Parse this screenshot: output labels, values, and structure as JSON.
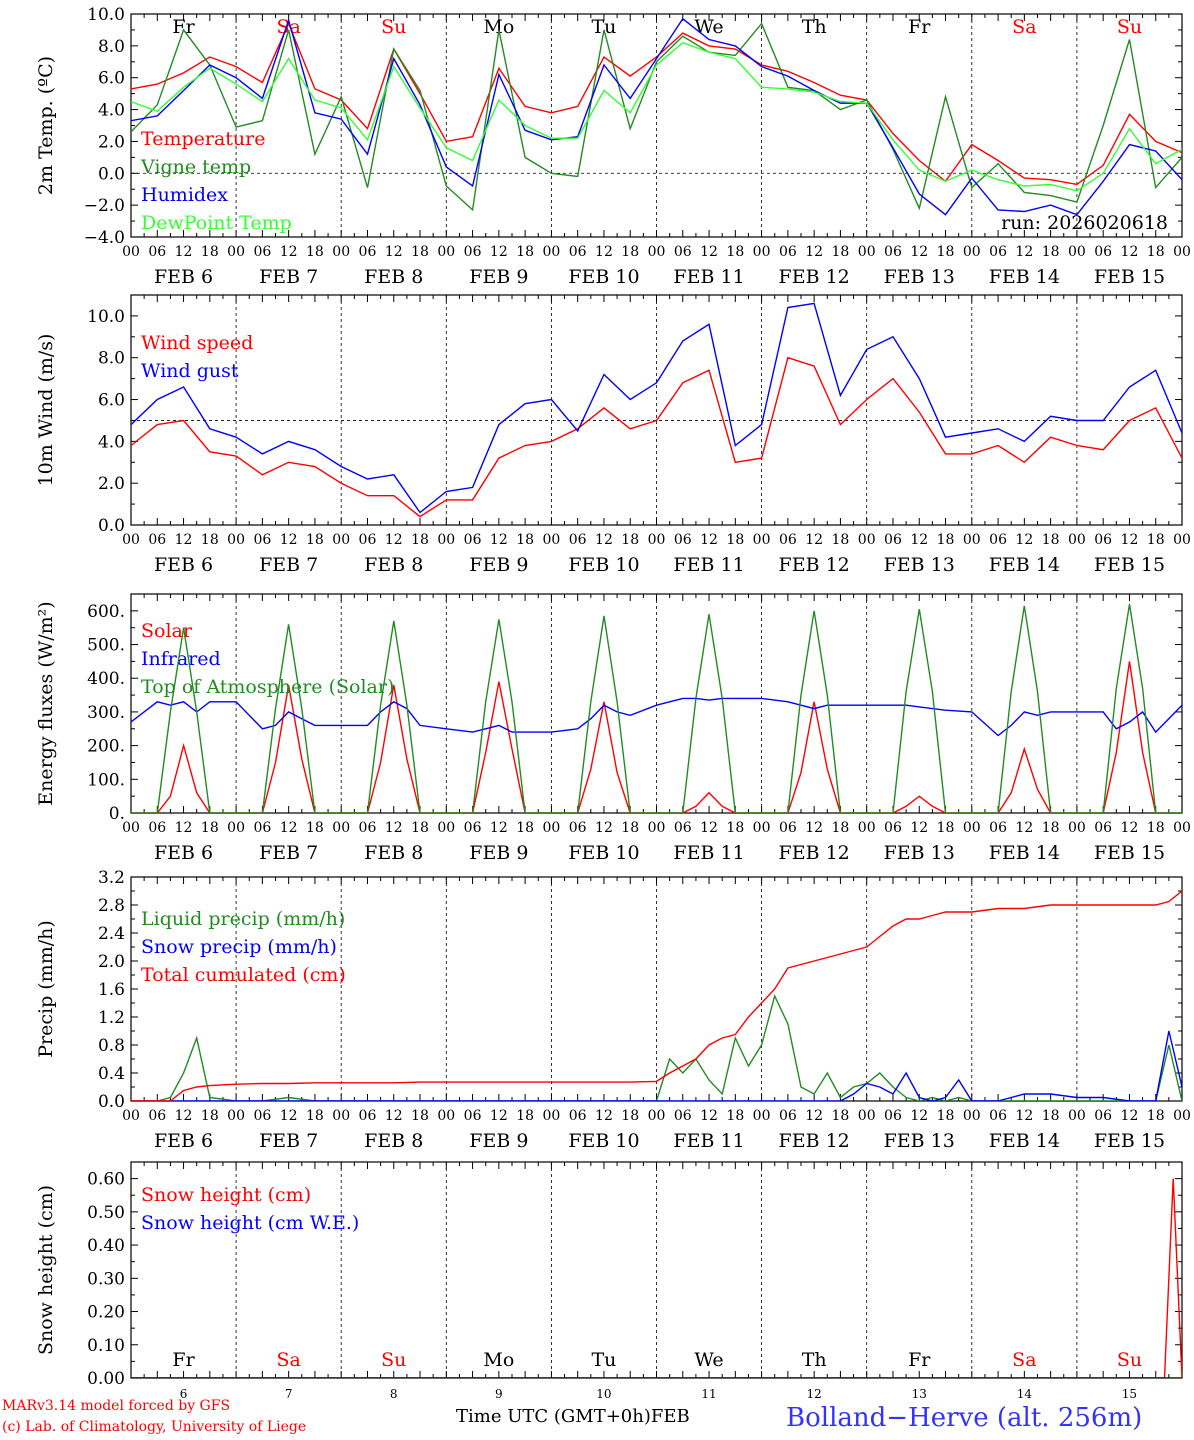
{
  "meta": {
    "model_credit": "MARv3.14 model forced by GFS",
    "lab_credit": "(c) Lab. of Climatology, University of Liege",
    "x_axis_label": "Time UTC (GMT+0h)",
    "x_axis_month": "FEB",
    "station": "Bolland−Herve (alt. 256m)",
    "run": "run: 2026020618"
  },
  "colors": {
    "red": "#ff0000",
    "green": "#228b22",
    "blue": "#0000ff",
    "lightgreen": "#33ff33",
    "weekend": "#ff0000",
    "weekday": "#000000"
  },
  "days": {
    "names": [
      "Fr",
      "Sa",
      "Su",
      "Mo",
      "Tu",
      "We",
      "Th",
      "Fr",
      "Sa",
      "Su"
    ],
    "weekend": [
      false,
      true,
      true,
      false,
      false,
      false,
      false,
      false,
      true,
      true
    ],
    "dates": [
      "FEB  6",
      "FEB  7",
      "FEB  8",
      "FEB  9",
      "FEB 10",
      "FEB 11",
      "FEB 12",
      "FEB 13",
      "FEB 14",
      "FEB 15"
    ],
    "numbers": [
      "6",
      "7",
      "8",
      "9",
      "10",
      "11",
      "12",
      "13",
      "14",
      "15"
    ],
    "hour_ticks": [
      "00",
      "06",
      "12",
      "18"
    ],
    "last_tick": "00"
  },
  "chart_data": [
    {
      "type": "line",
      "id": "temp",
      "ylabel": "2m Temp. (ºC)",
      "ylim": [
        -4,
        10
      ],
      "yticks": [
        "−4.0",
        "−2.0",
        "0.0",
        "2.0",
        "4.0",
        "6.0",
        "8.0",
        "10.0"
      ],
      "ytick_values": [
        -4,
        -2,
        0,
        2,
        4,
        6,
        8,
        10
      ],
      "ref_line": 0,
      "x_hours": [
        0,
        6,
        12,
        18,
        24,
        30,
        36,
        42,
        48,
        54,
        60,
        66,
        72,
        78,
        84,
        90,
        96,
        102,
        108,
        114,
        120,
        126,
        132,
        138,
        144,
        150,
        156,
        162,
        168,
        174,
        180,
        186,
        192,
        198,
        204,
        210,
        216,
        222,
        228,
        234,
        240
      ],
      "series": [
        {
          "name": "Temperature",
          "color": "red",
          "values": [
            5.3,
            5.6,
            6.3,
            7.3,
            6.7,
            5.7,
            9.4,
            5.3,
            4.6,
            2.8,
            7.8,
            5.0,
            2.0,
            2.3,
            6.6,
            4.2,
            3.8,
            4.2,
            7.3,
            6.1,
            7.3,
            8.8,
            8.0,
            7.8,
            6.8,
            6.4,
            5.7,
            4.9,
            4.6,
            2.5,
            0.8,
            -0.5,
            1.8,
            0.8,
            -0.3,
            -0.4,
            -0.7,
            0.5,
            3.7,
            2.0,
            1.3
          ]
        },
        {
          "name": "Vigne temp",
          "color": "green",
          "values": [
            2.6,
            4.3,
            9.0,
            6.8,
            2.9,
            3.3,
            9.0,
            1.2,
            4.8,
            -0.9,
            7.8,
            5.2,
            -0.8,
            -2.3,
            9.0,
            1.0,
            0.0,
            -0.2,
            9.0,
            2.8,
            7.0,
            8.6,
            7.6,
            7.4,
            9.4,
            5.4,
            5.2,
            4.0,
            4.6,
            1.5,
            -2.2,
            4.8,
            -0.9,
            0.6,
            -1.2,
            -1.4,
            -1.8,
            3.0,
            8.4,
            -0.9,
            1.0
          ]
        },
        {
          "name": "Humidex",
          "color": "blue",
          "values": [
            3.3,
            3.6,
            5.2,
            6.8,
            6.0,
            4.7,
            9.6,
            3.8,
            3.4,
            1.2,
            7.2,
            4.3,
            0.4,
            -0.8,
            6.2,
            2.7,
            2.1,
            2.3,
            6.8,
            4.7,
            7.2,
            9.7,
            8.4,
            8.0,
            6.7,
            6.1,
            5.2,
            4.4,
            4.4,
            1.6,
            -1.3,
            -2.6,
            -0.3,
            -2.3,
            -2.4,
            -2.0,
            -2.6,
            -0.5,
            1.8,
            1.4,
            -0.4
          ]
        },
        {
          "name": "DewPoint Temp",
          "color": "lightgreen",
          "values": [
            4.5,
            3.9,
            5.4,
            6.6,
            5.6,
            4.5,
            7.2,
            4.6,
            4.1,
            2.1,
            6.7,
            4.1,
            1.6,
            0.8,
            4.6,
            3.0,
            2.2,
            2.2,
            5.2,
            3.8,
            6.8,
            8.2,
            7.6,
            7.2,
            5.4,
            5.3,
            5.1,
            4.5,
            4.4,
            2.1,
            0.2,
            -0.5,
            0.2,
            -0.4,
            -0.8,
            -0.7,
            -1.1,
            0.0,
            2.8,
            0.6,
            1.5
          ]
        }
      ]
    },
    {
      "type": "line",
      "id": "wind",
      "ylabel": "10m Wind (m/s)",
      "ylim": [
        0,
        11
      ],
      "yticks": [
        "0.0",
        "2.0",
        "4.0",
        "6.0",
        "8.0",
        "10.0"
      ],
      "ytick_values": [
        0,
        2,
        4,
        6,
        8,
        10
      ],
      "ref_line": 5,
      "x_hours": [
        0,
        6,
        12,
        18,
        24,
        30,
        36,
        42,
        48,
        54,
        60,
        66,
        72,
        78,
        84,
        90,
        96,
        102,
        108,
        114,
        120,
        126,
        132,
        138,
        144,
        150,
        156,
        162,
        168,
        174,
        180,
        186,
        192,
        198,
        204,
        210,
        216,
        222,
        228,
        234,
        240
      ],
      "series": [
        {
          "name": "Wind speed",
          "color": "red",
          "values": [
            3.8,
            4.8,
            5.0,
            3.5,
            3.3,
            2.4,
            3.0,
            2.8,
            2.0,
            1.4,
            1.4,
            0.4,
            1.2,
            1.2,
            3.2,
            3.8,
            4.0,
            4.6,
            5.6,
            4.6,
            5.0,
            6.8,
            7.4,
            3.0,
            3.2,
            8.0,
            7.6,
            4.8,
            6.0,
            7.0,
            5.4,
            3.4,
            3.4,
            3.8,
            3.0,
            4.2,
            3.8,
            3.6,
            5.0,
            5.6,
            3.2
          ]
        },
        {
          "name": "Wind gust",
          "color": "blue",
          "values": [
            4.8,
            6.0,
            6.6,
            4.6,
            4.2,
            3.4,
            4.0,
            3.6,
            2.8,
            2.2,
            2.4,
            0.6,
            1.6,
            1.8,
            4.8,
            5.8,
            6.0,
            4.5,
            7.2,
            6.0,
            6.8,
            8.8,
            9.6,
            3.8,
            4.8,
            10.4,
            10.6,
            6.2,
            8.4,
            9.0,
            7.0,
            4.2,
            4.4,
            4.6,
            4.0,
            5.2,
            5.0,
            5.0,
            6.6,
            7.4,
            4.4
          ]
        }
      ]
    },
    {
      "type": "line",
      "id": "flux",
      "ylabel": "Energy fluxes (W/m²)",
      "ylim": [
        0,
        650
      ],
      "yticks": [
        "0.",
        "100.",
        "200.",
        "300.",
        "400.",
        "500.",
        "600."
      ],
      "ytick_values": [
        0,
        100,
        200,
        300,
        400,
        500,
        600
      ],
      "ref_line": null,
      "x_hours": [
        0,
        6,
        9,
        12,
        15,
        18,
        24,
        30,
        33,
        36,
        39,
        42,
        48,
        54,
        57,
        60,
        63,
        66,
        72,
        78,
        81,
        84,
        87,
        90,
        96,
        102,
        105,
        108,
        111,
        114,
        120,
        126,
        129,
        132,
        135,
        138,
        144,
        150,
        153,
        156,
        159,
        162,
        168,
        174,
        177,
        180,
        183,
        186,
        192,
        198,
        201,
        204,
        207,
        210,
        216,
        222,
        225,
        228,
        231,
        234,
        240
      ],
      "series": [
        {
          "name": "Solar",
          "color": "red",
          "values": [
            0,
            0,
            50,
            200,
            60,
            0,
            0,
            0,
            150,
            380,
            160,
            0,
            0,
            0,
            150,
            380,
            160,
            0,
            0,
            0,
            180,
            390,
            190,
            0,
            0,
            0,
            130,
            330,
            120,
            0,
            0,
            0,
            20,
            60,
            20,
            0,
            0,
            0,
            120,
            330,
            130,
            0,
            0,
            0,
            20,
            50,
            20,
            0,
            0,
            0,
            60,
            190,
            70,
            0,
            0,
            0,
            180,
            450,
            180,
            0,
            0
          ]
        },
        {
          "name": "Infrared",
          "color": "blue",
          "values": [
            270,
            330,
            320,
            330,
            300,
            330,
            330,
            250,
            260,
            300,
            280,
            260,
            260,
            260,
            300,
            330,
            310,
            260,
            250,
            240,
            250,
            260,
            240,
            240,
            240,
            250,
            280,
            320,
            300,
            290,
            320,
            340,
            340,
            335,
            340,
            340,
            340,
            330,
            320,
            310,
            320,
            320,
            320,
            320,
            320,
            315,
            310,
            305,
            300,
            230,
            260,
            300,
            290,
            300,
            300,
            300,
            250,
            270,
            300,
            240,
            320
          ]
        },
        {
          "name": "Top of Atmosphere (Solar)",
          "color": "green",
          "values": [
            0,
            0,
            300,
            550,
            300,
            0,
            0,
            0,
            310,
            560,
            310,
            0,
            0,
            0,
            320,
            570,
            320,
            0,
            0,
            0,
            330,
            575,
            330,
            0,
            0,
            0,
            330,
            585,
            330,
            0,
            0,
            0,
            340,
            590,
            340,
            0,
            0,
            0,
            350,
            600,
            350,
            0,
            0,
            0,
            360,
            605,
            360,
            0,
            0,
            0,
            360,
            615,
            360,
            0,
            0,
            0,
            370,
            620,
            370,
            0,
            0
          ]
        }
      ]
    },
    {
      "type": "line",
      "id": "precip",
      "ylabel": "Precip (mm/h)",
      "ylim": [
        0,
        3.2
      ],
      "yticks": [
        "0.0",
        "0.4",
        "0.8",
        "1.2",
        "1.6",
        "2.0",
        "2.4",
        "2.8",
        "3.2"
      ],
      "ytick_values": [
        0,
        0.4,
        0.8,
        1.2,
        1.6,
        2.0,
        2.4,
        2.8,
        3.2
      ],
      "ref_line": null,
      "x_hours": [
        0,
        6,
        9,
        12,
        15,
        18,
        24,
        30,
        36,
        42,
        48,
        54,
        60,
        66,
        72,
        78,
        84,
        90,
        96,
        102,
        108,
        114,
        120,
        123,
        126,
        129,
        132,
        135,
        138,
        141,
        144,
        147,
        150,
        153,
        156,
        159,
        162,
        165,
        168,
        171,
        174,
        177,
        180,
        183,
        186,
        189,
        192,
        198,
        204,
        210,
        216,
        222,
        228,
        234,
        237,
        240
      ],
      "series": [
        {
          "name": "Liquid precip (mm/h)",
          "color": "green",
          "values": [
            0,
            0,
            0.05,
            0.4,
            0.9,
            0.05,
            0,
            0,
            0.05,
            0,
            0,
            0,
            0,
            0,
            0,
            0,
            0,
            0,
            0,
            0,
            0,
            0,
            0,
            0.6,
            0.4,
            0.6,
            0.3,
            0.1,
            0.9,
            0.5,
            0.8,
            1.5,
            1.1,
            0.2,
            0.1,
            0.4,
            0.05,
            0.2,
            0.25,
            0.4,
            0.2,
            0.05,
            0,
            0.05,
            0,
            0.05,
            0,
            0,
            0,
            0,
            0,
            0,
            0,
            0,
            0.8,
            0
          ]
        },
        {
          "name": "Snow precip (mm/h)",
          "color": "blue",
          "values": [
            0,
            0,
            0,
            0,
            0,
            0,
            0,
            0,
            0,
            0,
            0,
            0,
            0,
            0,
            0,
            0,
            0,
            0,
            0,
            0,
            0,
            0,
            0,
            0,
            0,
            0,
            0,
            0,
            0,
            0,
            0,
            0,
            0,
            0,
            0,
            0,
            0,
            0.1,
            0.25,
            0.2,
            0.1,
            0.4,
            0.05,
            0,
            0.05,
            0.3,
            0,
            0,
            0.1,
            0.1,
            0.05,
            0.05,
            0,
            0,
            1.0,
            0.2
          ]
        },
        {
          "name": "Total cumulated (cm)",
          "color": "red",
          "values": [
            0,
            0,
            0,
            0.15,
            0.2,
            0.22,
            0.24,
            0.25,
            0.25,
            0.26,
            0.26,
            0.26,
            0.26,
            0.27,
            0.27,
            0.27,
            0.27,
            0.27,
            0.27,
            0.27,
            0.27,
            0.27,
            0.28,
            0.4,
            0.5,
            0.6,
            0.8,
            0.9,
            0.95,
            1.2,
            1.4,
            1.6,
            1.9,
            1.95,
            2.0,
            2.05,
            2.1,
            2.15,
            2.2,
            2.35,
            2.5,
            2.6,
            2.6,
            2.65,
            2.7,
            2.7,
            2.7,
            2.75,
            2.75,
            2.8,
            2.8,
            2.8,
            2.8,
            2.8,
            2.85,
            3.0
          ]
        }
      ]
    },
    {
      "type": "line",
      "id": "snow",
      "ylabel": "Snow height (cm)",
      "ylim": [
        0,
        0.65
      ],
      "yticks": [
        "0.00",
        "0.10",
        "0.20",
        "0.30",
        "0.40",
        "0.50",
        "0.60"
      ],
      "ytick_values": [
        0,
        0.1,
        0.2,
        0.3,
        0.4,
        0.5,
        0.6
      ],
      "ref_line": null,
      "x_hours": [
        0,
        48,
        96,
        144,
        192,
        236,
        238,
        239,
        240
      ],
      "series": [
        {
          "name": "Snow height (cm)",
          "color": "red",
          "values": [
            0,
            0,
            0,
            0,
            0,
            0,
            0.6,
            0.3,
            0
          ]
        },
        {
          "name": "Snow height (cm W.E.)",
          "color": "blue",
          "values": [
            0,
            0,
            0,
            0,
            0,
            0,
            0,
            0,
            0
          ]
        }
      ]
    }
  ]
}
